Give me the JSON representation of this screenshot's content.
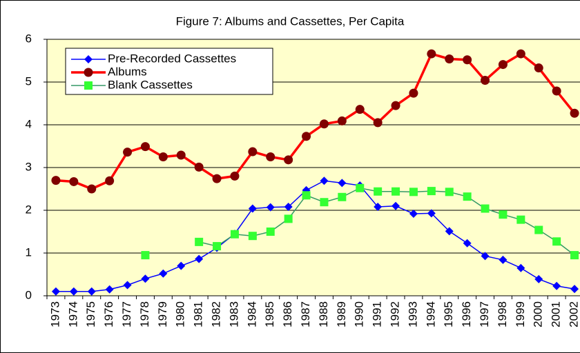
{
  "chart_data": {
    "type": "line",
    "title": "Figure 7: Albums and Cassettes, Per Capita",
    "categories": [
      "1973",
      "1974",
      "1975",
      "1976",
      "1977",
      "1978",
      "1979",
      "1980",
      "1981",
      "1982",
      "1983",
      "1984",
      "1985",
      "1986",
      "1987",
      "1988",
      "1989",
      "1990",
      "1991",
      "1992",
      "1993",
      "1994",
      "1995",
      "1996",
      "1997",
      "1998",
      "1999",
      "2000",
      "2001",
      "2002"
    ],
    "series": [
      {
        "name": "Pre-Recorded Cassettes",
        "color": "#0000ff",
        "marker": "diamond",
        "marker_color": "#0000ff",
        "values": [
          0.1,
          0.1,
          0.1,
          0.15,
          0.25,
          0.4,
          0.52,
          0.7,
          0.86,
          1.12,
          1.45,
          2.04,
          2.07,
          2.08,
          2.47,
          2.69,
          2.64,
          2.58,
          2.08,
          2.1,
          1.92,
          1.93,
          1.51,
          1.23,
          0.93,
          0.84,
          0.65,
          0.39,
          0.23,
          0.16
        ]
      },
      {
        "name": "Albums",
        "color": "#ff0000",
        "marker": "circle",
        "marker_color": "#800000",
        "values": [
          2.7,
          2.67,
          2.5,
          2.69,
          3.36,
          3.49,
          3.25,
          3.29,
          3.01,
          2.74,
          2.8,
          3.37,
          3.25,
          3.18,
          3.73,
          4.02,
          4.09,
          4.36,
          4.05,
          4.45,
          4.74,
          5.66,
          5.54,
          5.52,
          5.04,
          5.41,
          5.66,
          5.33,
          4.79,
          4.27
        ]
      },
      {
        "name": "Blank Cassettes",
        "color": "#339966",
        "marker": "square",
        "marker_color": "#33ff33",
        "values": [
          null,
          null,
          null,
          null,
          null,
          0.95,
          null,
          null,
          1.26,
          1.16,
          1.44,
          1.4,
          1.5,
          1.8,
          2.35,
          2.19,
          2.31,
          2.52,
          2.44,
          2.44,
          2.43,
          2.45,
          2.43,
          2.32,
          2.04,
          1.9,
          1.78,
          1.54,
          1.27,
          0.95
        ]
      }
    ],
    "ylim": [
      0,
      6
    ],
    "yticks": [
      0,
      1,
      2,
      3,
      4,
      5,
      6
    ],
    "grid": true,
    "legend": "upper left"
  }
}
